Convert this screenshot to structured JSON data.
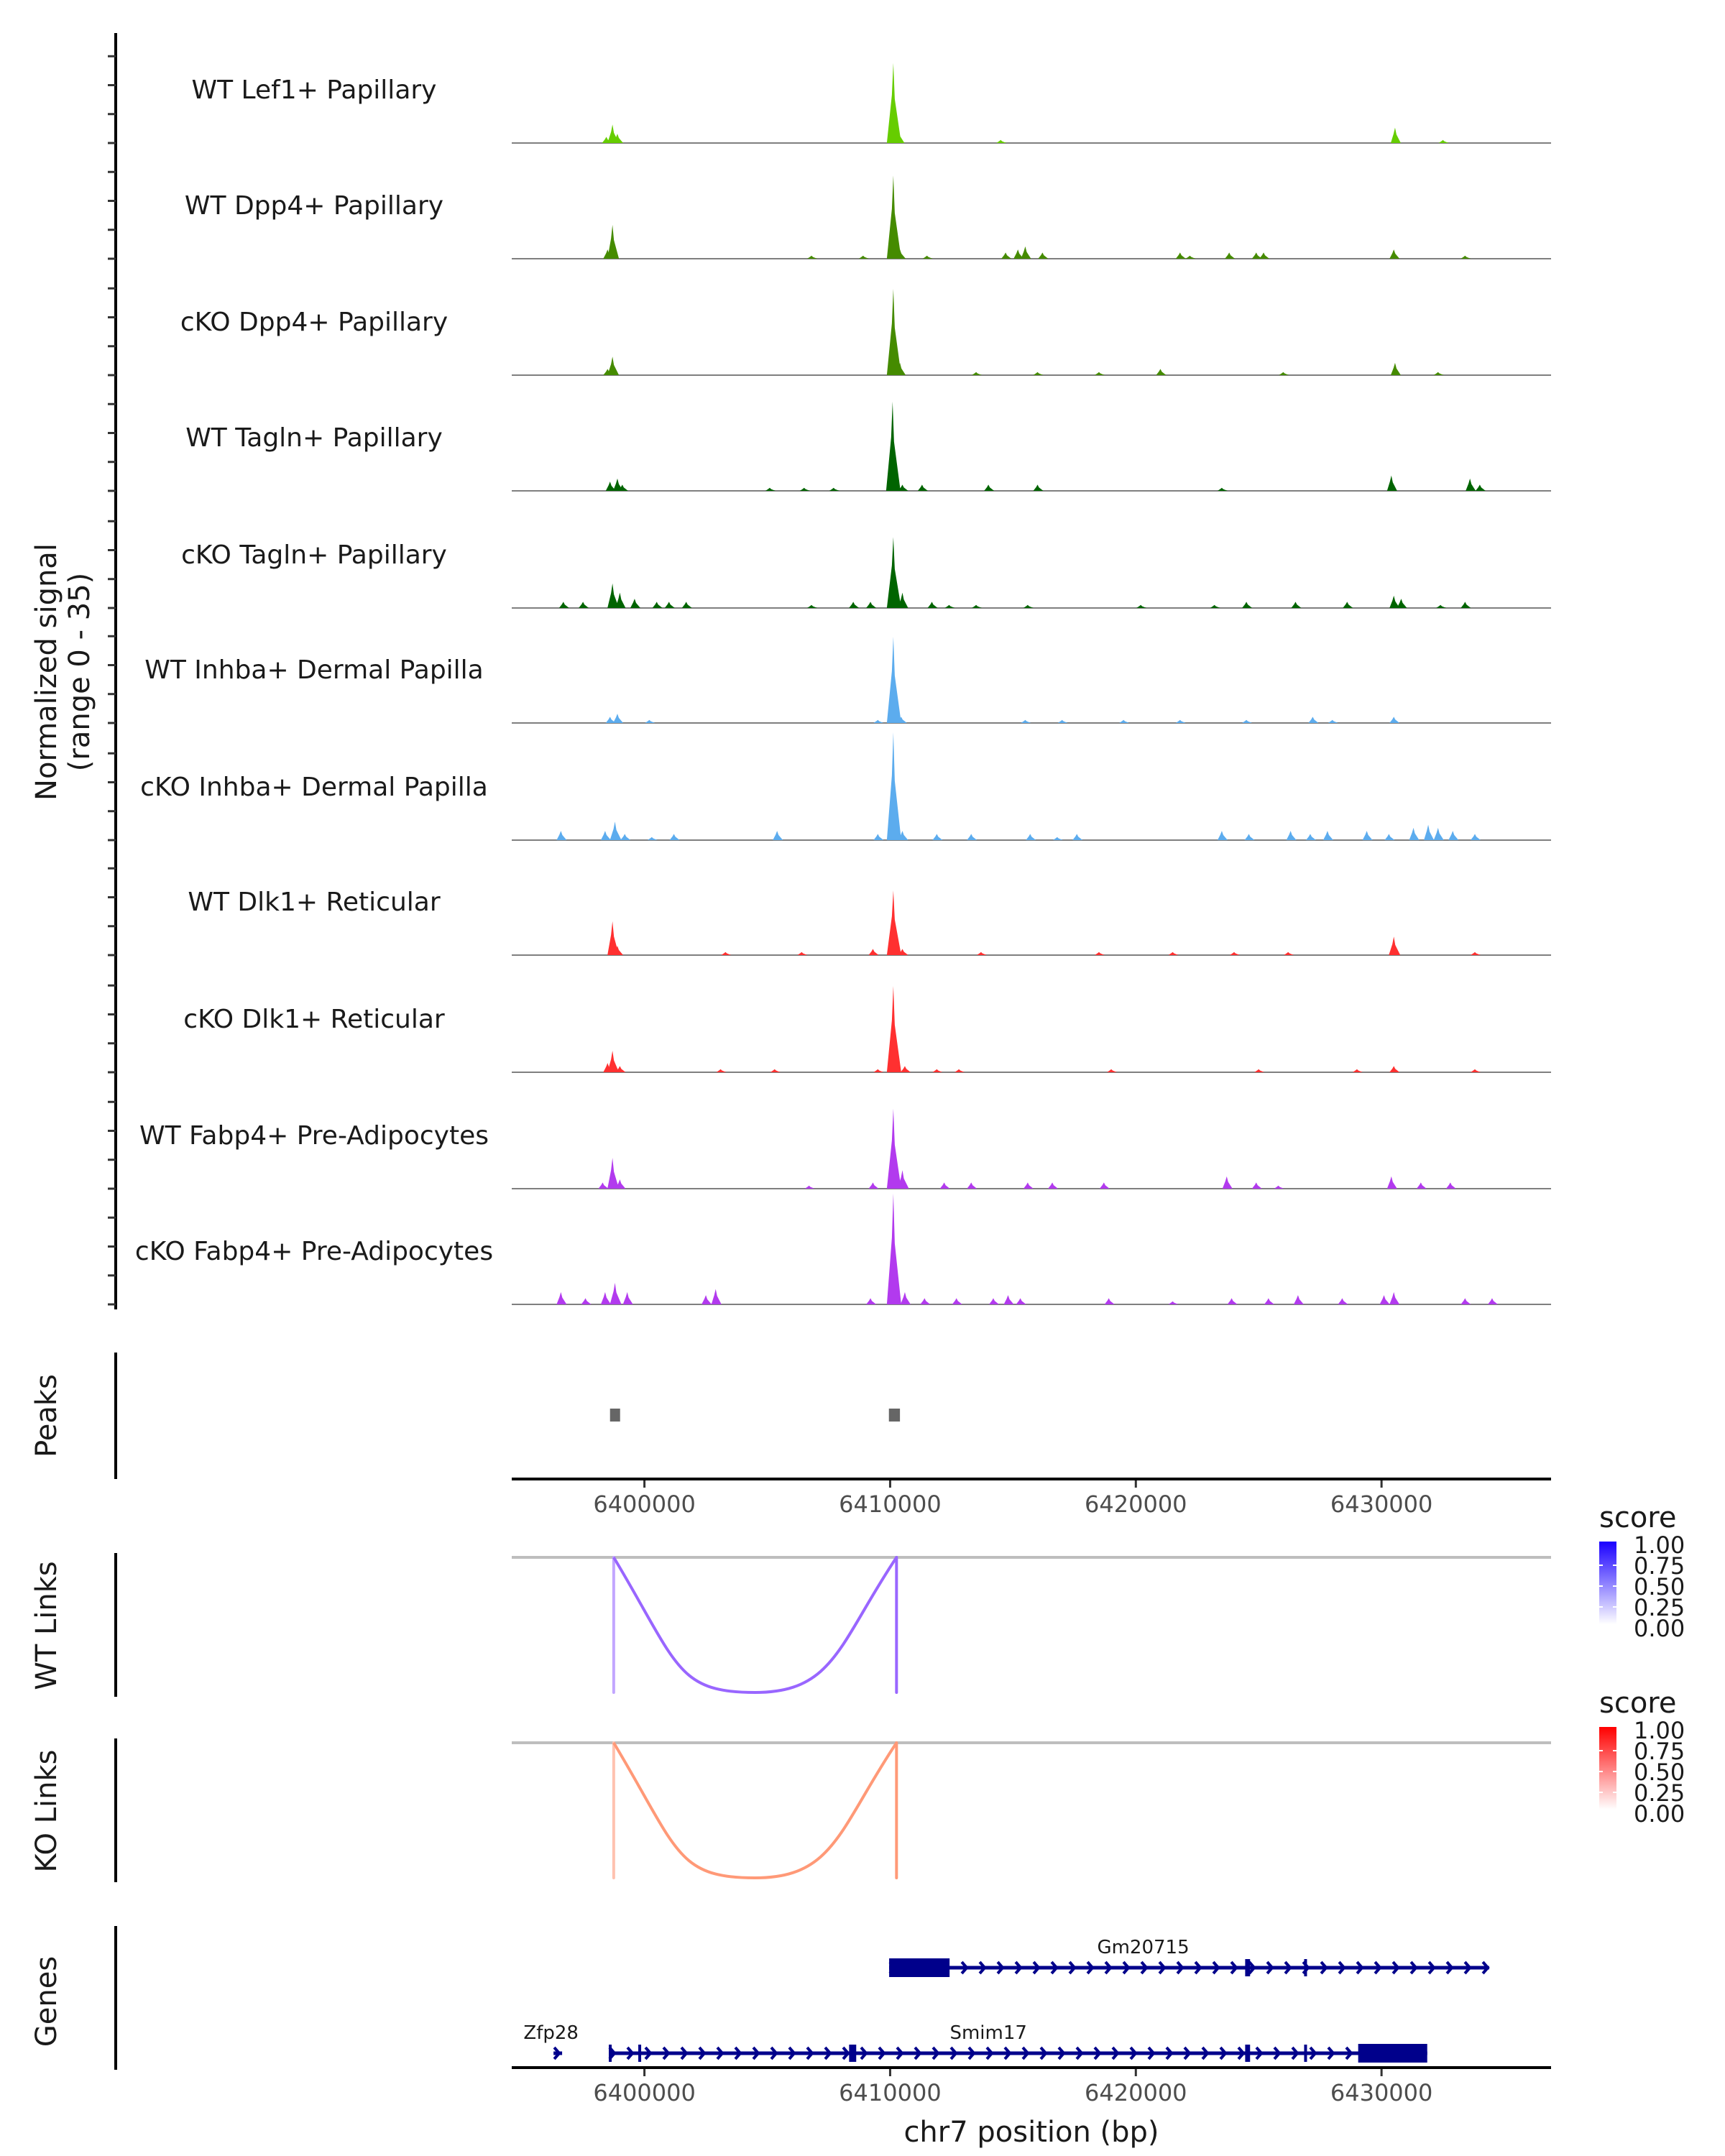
{
  "chart_data": {
    "type": "area",
    "title": "",
    "xlabel": "chr7 position (bp)",
    "ylabel": "Normalized signal\n(range 0 - 35)",
    "ylabel_lines": [
      "Normalized signal",
      "(range 0 - 35)"
    ],
    "xlim": [
      6394600,
      6436900
    ],
    "ylim": [
      0,
      35
    ],
    "x_ticks": [
      6400000,
      6410000,
      6420000,
      6430000
    ],
    "x_tick_labels": [
      "6400000",
      "6410000",
      "6420000",
      "6430000"
    ],
    "coverage_tracks": [
      {
        "name": "WT Lef1+ Papillary",
        "color": "#66cd00",
        "peaks": [
          [
            6398450,
            2
          ],
          [
            6398700,
            6
          ],
          [
            6398900,
            3
          ],
          [
            6410130,
            26
          ],
          [
            6410350,
            4
          ],
          [
            6414500,
            1
          ],
          [
            6430550,
            5
          ],
          [
            6432500,
            1
          ]
        ]
      },
      {
        "name": "WT Dpp4+ Papillary",
        "color": "#458b00",
        "peaks": [
          [
            6398500,
            3
          ],
          [
            6398700,
            11
          ],
          [
            6406800,
            1
          ],
          [
            6408900,
            1
          ],
          [
            6410130,
            27
          ],
          [
            6410400,
            3
          ],
          [
            6411500,
            1
          ],
          [
            6414700,
            2
          ],
          [
            6415200,
            3
          ],
          [
            6415500,
            4
          ],
          [
            6416200,
            2
          ],
          [
            6421800,
            2
          ],
          [
            6422200,
            1
          ],
          [
            6423800,
            2
          ],
          [
            6424900,
            2
          ],
          [
            6425200,
            2
          ],
          [
            6430500,
            3
          ],
          [
            6433400,
            1
          ]
        ]
      },
      {
        "name": "cKO Dpp4+ Papillary",
        "color": "#458b00",
        "peaks": [
          [
            6398500,
            2
          ],
          [
            6398700,
            6
          ],
          [
            6410130,
            28
          ],
          [
            6410400,
            4
          ],
          [
            6413500,
            1
          ],
          [
            6416000,
            1
          ],
          [
            6418500,
            1
          ],
          [
            6421000,
            2
          ],
          [
            6426000,
            1
          ],
          [
            6430550,
            4
          ],
          [
            6432300,
            1
          ]
        ]
      },
      {
        "name": "WT Tagln+ Papillary",
        "color": "#006400",
        "peaks": [
          [
            6398600,
            3
          ],
          [
            6398900,
            4
          ],
          [
            6399100,
            2
          ],
          [
            6405100,
            1
          ],
          [
            6406500,
            1
          ],
          [
            6407700,
            1
          ],
          [
            6410100,
            29
          ],
          [
            6410500,
            2
          ],
          [
            6411300,
            2
          ],
          [
            6414000,
            2
          ],
          [
            6416000,
            2
          ],
          [
            6423500,
            1
          ],
          [
            6430400,
            5
          ],
          [
            6433600,
            4
          ],
          [
            6434000,
            2
          ]
        ]
      },
      {
        "name": "cKO Tagln+ Papillary",
        "color": "#006400",
        "peaks": [
          [
            6396700,
            2
          ],
          [
            6397500,
            2
          ],
          [
            6398700,
            8
          ],
          [
            6399000,
            5
          ],
          [
            6399600,
            3
          ],
          [
            6400500,
            2
          ],
          [
            6401000,
            2
          ],
          [
            6401700,
            2
          ],
          [
            6406800,
            1
          ],
          [
            6408500,
            2
          ],
          [
            6409200,
            2
          ],
          [
            6410130,
            23
          ],
          [
            6410500,
            5
          ],
          [
            6411700,
            2
          ],
          [
            6412400,
            1
          ],
          [
            6413500,
            1
          ],
          [
            6415600,
            1
          ],
          [
            6420200,
            1
          ],
          [
            6423200,
            1
          ],
          [
            6424500,
            2
          ],
          [
            6426500,
            2
          ],
          [
            6428600,
            2
          ],
          [
            6430500,
            4
          ],
          [
            6430800,
            3
          ],
          [
            6432400,
            1
          ],
          [
            6433400,
            2
          ]
        ]
      },
      {
        "name": "WT Inhba+ Dermal Papilla",
        "color": "#5cacee",
        "peaks": [
          [
            6398600,
            2
          ],
          [
            6398900,
            3
          ],
          [
            6400200,
            1
          ],
          [
            6409500,
            1
          ],
          [
            6410130,
            28
          ],
          [
            6410450,
            2
          ],
          [
            6415500,
            1
          ],
          [
            6417000,
            1
          ],
          [
            6419500,
            1
          ],
          [
            6421800,
            1
          ],
          [
            6424500,
            1
          ],
          [
            6427200,
            2
          ],
          [
            6428000,
            1
          ],
          [
            6430500,
            2
          ]
        ]
      },
      {
        "name": "cKO Inhba+ Dermal Papilla",
        "color": "#5cacee",
        "peaks": [
          [
            6396600,
            3
          ],
          [
            6398400,
            3
          ],
          [
            6398800,
            6
          ],
          [
            6399200,
            2
          ],
          [
            6400300,
            1
          ],
          [
            6401200,
            2
          ],
          [
            6405400,
            3
          ],
          [
            6409500,
            2
          ],
          [
            6410130,
            35
          ],
          [
            6410500,
            3
          ],
          [
            6411900,
            2
          ],
          [
            6413300,
            2
          ],
          [
            6415700,
            2
          ],
          [
            6416800,
            1
          ],
          [
            6417600,
            2
          ],
          [
            6423500,
            3
          ],
          [
            6424600,
            2
          ],
          [
            6426300,
            3
          ],
          [
            6427100,
            2
          ],
          [
            6427800,
            3
          ],
          [
            6429400,
            3
          ],
          [
            6430300,
            2
          ],
          [
            6431300,
            4
          ],
          [
            6431900,
            5
          ],
          [
            6432300,
            4
          ],
          [
            6432900,
            3
          ],
          [
            6433800,
            2
          ]
        ]
      },
      {
        "name": "WT Dlk1+ Reticular",
        "color": "#ff3030",
        "peaks": [
          [
            6398700,
            11
          ],
          [
            6398900,
            3
          ],
          [
            6403300,
            1
          ],
          [
            6406400,
            1
          ],
          [
            6409300,
            2
          ],
          [
            6410130,
            21
          ],
          [
            6410500,
            2
          ],
          [
            6413700,
            1
          ],
          [
            6418500,
            1
          ],
          [
            6421500,
            1
          ],
          [
            6424000,
            1
          ],
          [
            6426200,
            1
          ],
          [
            6430500,
            6
          ],
          [
            6433800,
            1
          ]
        ]
      },
      {
        "name": "cKO Dlk1+ Reticular",
        "color": "#ff3030",
        "peaks": [
          [
            6398500,
            3
          ],
          [
            6398700,
            7
          ],
          [
            6399000,
            2
          ],
          [
            6403100,
            1
          ],
          [
            6405300,
            1
          ],
          [
            6409500,
            1
          ],
          [
            6410130,
            28
          ],
          [
            6410600,
            2
          ],
          [
            6411900,
            1
          ],
          [
            6412800,
            1
          ],
          [
            6419000,
            1
          ],
          [
            6425000,
            1
          ],
          [
            6429000,
            1
          ],
          [
            6430500,
            2
          ],
          [
            6433800,
            1
          ]
        ]
      },
      {
        "name": "WT Fabp4+ Pre-Adipocytes",
        "color": "#b23aee",
        "peaks": [
          [
            6398300,
            2
          ],
          [
            6398700,
            10
          ],
          [
            6399000,
            3
          ],
          [
            6406700,
            1
          ],
          [
            6409300,
            2
          ],
          [
            6410130,
            26
          ],
          [
            6410500,
            6
          ],
          [
            6412200,
            2
          ],
          [
            6413300,
            2
          ],
          [
            6415600,
            2
          ],
          [
            6416600,
            2
          ],
          [
            6418700,
            2
          ],
          [
            6423700,
            4
          ],
          [
            6424900,
            2
          ],
          [
            6425800,
            1
          ],
          [
            6430400,
            4
          ],
          [
            6431600,
            2
          ],
          [
            6432800,
            2
          ]
        ]
      },
      {
        "name": "cKO Fabp4+ Pre-Adipocytes",
        "color": "#b23aee",
        "peaks": [
          [
            6396600,
            4
          ],
          [
            6397600,
            2
          ],
          [
            6398400,
            4
          ],
          [
            6398800,
            7
          ],
          [
            6399300,
            4
          ],
          [
            6402500,
            3
          ],
          [
            6402900,
            5
          ],
          [
            6409200,
            2
          ],
          [
            6410130,
            36
          ],
          [
            6410600,
            4
          ],
          [
            6411400,
            2
          ],
          [
            6412700,
            2
          ],
          [
            6414200,
            2
          ],
          [
            6414800,
            3
          ],
          [
            6415300,
            2
          ],
          [
            6418900,
            2
          ],
          [
            6421500,
            1
          ],
          [
            6423900,
            2
          ],
          [
            6425400,
            2
          ],
          [
            6426600,
            3
          ],
          [
            6428400,
            2
          ],
          [
            6430100,
            3
          ],
          [
            6430500,
            4
          ],
          [
            6433400,
            2
          ],
          [
            6434500,
            2
          ]
        ]
      }
    ],
    "peaks_track": {
      "label": "Peaks",
      "color": "#666666",
      "regions": [
        [
          6398600,
          6398900
        ],
        [
          6409950,
          6410400
        ]
      ]
    },
    "links_tracks": [
      {
        "label": "WT Links",
        "line_color": "#9966ff",
        "links": [
          {
            "start": 6398750,
            "end": 6410260,
            "score": 0.6
          }
        ],
        "anchor_colors": [
          "#c2a6ff",
          "#9966ff"
        ],
        "legend": {
          "title": "score",
          "ticks": [
            "1.00",
            "0.75",
            "0.50",
            "0.25",
            "0.00"
          ],
          "high": "#1a00ff",
          "low": "#ffffff"
        }
      },
      {
        "label": "KO Links",
        "line_color": "#ff9977",
        "links": [
          {
            "start": 6398750,
            "end": 6410260,
            "score": 0.5
          }
        ],
        "anchor_colors": [
          "#ffc2b0",
          "#ff9977"
        ],
        "legend": {
          "title": "score",
          "ticks": [
            "1.00",
            "0.75",
            "0.50",
            "0.25",
            "0.00"
          ],
          "high": "#ff0000",
          "low": "#ffffff"
        }
      }
    ],
    "genes_track": {
      "label": "Genes",
      "color": "#00008b",
      "genes": [
        {
          "name": "Gm20715",
          "start": 6409960,
          "end": 6434380,
          "strand": "+",
          "row": 0,
          "label_pos": 6420300,
          "exons": [
            [
              6409960,
              6412420
            ],
            [
              6424450,
              6424650
            ],
            [
              6426850,
              6426950
            ]
          ]
        },
        {
          "name": "Zfp28",
          "start": 6396300,
          "end": 6396650,
          "strand": "+",
          "row": 1,
          "label_pos": 6396200,
          "exons": []
        },
        {
          "name": "Smim17",
          "start": 6398550,
          "end": 6431860,
          "strand": "+",
          "row": 1,
          "label_pos": 6414000,
          "exons": [
            [
              6398550,
              6398620
            ],
            [
              6399750,
              6399850
            ],
            [
              6408330,
              6408620
            ],
            [
              6424450,
              6424650
            ],
            [
              6426850,
              6426950
            ],
            [
              6429050,
              6431860
            ]
          ]
        }
      ]
    }
  }
}
